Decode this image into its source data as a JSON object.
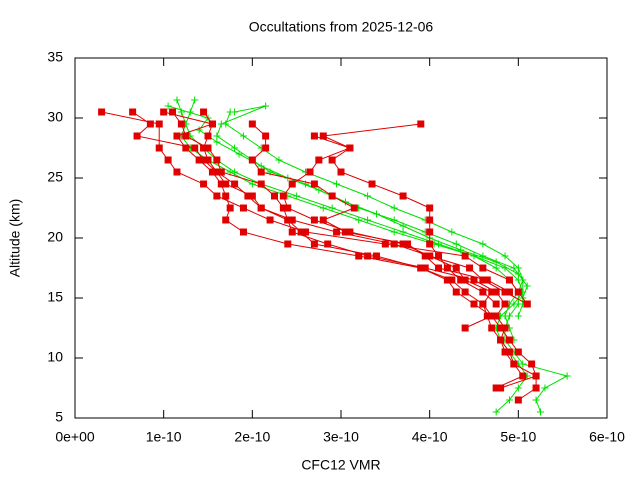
{
  "chart_data": {
    "type": "line",
    "title": "Occultations from 2025-12-06",
    "xlabel": "CFC12 VMR",
    "ylabel": "Altitude (km)",
    "xlim": [
      0,
      6e-10
    ],
    "ylim": [
      5,
      35
    ],
    "xticks": [
      {
        "value": 0,
        "label": "0e+00"
      },
      {
        "value": 1e-10,
        "label": "1e-10"
      },
      {
        "value": 2e-10,
        "label": "2e-10"
      },
      {
        "value": 3e-10,
        "label": "3e-10"
      },
      {
        "value": 4e-10,
        "label": "4e-10"
      },
      {
        "value": 5e-10,
        "label": "5e-10"
      },
      {
        "value": 6e-10,
        "label": "6e-10"
      }
    ],
    "yticks": [
      5,
      10,
      15,
      20,
      25,
      30,
      35
    ],
    "series": [
      {
        "color": "#00e000",
        "marker": "plus",
        "x": [
          1.15e-10,
          1.2e-10,
          1.25e-10,
          1.3e-10,
          1.45e-10,
          1.6e-10,
          1.8e-10,
          2.1e-10,
          2.5e-10,
          2.9e-10,
          3.3e-10,
          3.7e-10,
          4.1e-10,
          4.5e-10,
          4.75e-10,
          4.9e-10,
          5e-10,
          5e-10,
          4.9e-10,
          4.85e-10,
          4.85e-10,
          4.95e-10,
          5.05e-10,
          5.55e-10,
          5.3e-10,
          5.2e-10,
          5.25e-10
        ],
        "y": [
          31.5,
          30.5,
          29.5,
          28.5,
          27.5,
          26.5,
          25.5,
          24.5,
          23.5,
          22.5,
          21.5,
          20.5,
          19.5,
          18.5,
          17.5,
          16.5,
          15.5,
          14.5,
          13.5,
          12.5,
          11.5,
          10.5,
          9.5,
          8.5,
          7.5,
          6.5,
          5.5
        ]
      },
      {
        "color": "#00e000",
        "marker": "plus",
        "x": [
          1.35e-10,
          1.3e-10,
          1.25e-10,
          1.2e-10,
          1.3e-10,
          1.5e-10,
          1.75e-10,
          2e-10,
          2.4e-10,
          2.8e-10,
          3.2e-10,
          3.6e-10,
          4.05e-10,
          4.5e-10,
          4.85e-10,
          5e-10,
          5.05e-10,
          4.95e-10,
          4.8e-10,
          4.75e-10,
          4.8e-10,
          4.9e-10,
          5e-10,
          5.1e-10,
          5e-10,
          4.9e-10,
          4.75e-10
        ],
        "y": [
          31.5,
          30.5,
          29.5,
          28.5,
          27.5,
          26.5,
          25.5,
          24.5,
          23.5,
          22.5,
          21.5,
          20.5,
          19.5,
          18.5,
          17.5,
          16.5,
          15.5,
          14.5,
          13.5,
          12.5,
          11.5,
          10.5,
          9.5,
          8.5,
          7.5,
          6.5,
          5.5
        ]
      },
      {
        "color": "#00e000",
        "marker": "plus",
        "x": [
          1.8e-10,
          2.15e-10,
          1.65e-10,
          1.6e-10,
          1.8e-10,
          2e-10,
          2.2e-10,
          2.6e-10,
          2.9e-10,
          3.2e-10,
          3.6e-10,
          3.95e-10,
          4.3e-10,
          4.6e-10,
          4.95e-10,
          5.05e-10,
          5e-10,
          4.9e-10,
          4.85e-10,
          4.9e-10,
          4.95e-10
        ],
        "y": [
          30.5,
          31.0,
          29.5,
          28.5,
          27.5,
          26.5,
          25.5,
          24.5,
          23.5,
          22.5,
          21.5,
          20.5,
          19.5,
          18.5,
          17.5,
          16.5,
          15.5,
          14.5,
          13.5,
          12.5,
          11.5
        ]
      },
      {
        "color": "#00e000",
        "marker": "plus",
        "x": [
          1.05e-10,
          1.5e-10,
          1.4e-10,
          1.6e-10,
          1.85e-10,
          2.1e-10,
          2.4e-10,
          2.75e-10,
          3.05e-10,
          3.4e-10,
          3.7e-10,
          4e-10,
          4.35e-10,
          4.75e-10,
          5e-10,
          5.1e-10,
          5.05e-10
        ],
        "y": [
          31.0,
          30.0,
          29.0,
          28.0,
          27.0,
          26.0,
          25.0,
          24.0,
          23.0,
          22.0,
          21.0,
          20.0,
          19.0,
          18.0,
          17.0,
          16.0,
          15.0
        ]
      },
      {
        "color": "#00e000",
        "marker": "plus",
        "x": [
          1.75e-10,
          1.7e-10,
          1.9e-10,
          2.1e-10,
          2.3e-10,
          2.6e-10,
          2.95e-10,
          3.3e-10,
          3.6e-10,
          3.95e-10,
          4.25e-10,
          4.6e-10,
          4.85e-10,
          5e-10,
          5.05e-10,
          5.05e-10,
          5.05e-10,
          5e-10
        ],
        "y": [
          30.5,
          29.5,
          28.5,
          27.5,
          26.5,
          25.5,
          24.5,
          23.5,
          22.5,
          21.5,
          20.5,
          19.5,
          18.5,
          17.5,
          16.5,
          15.5,
          14.5,
          13.5
        ]
      },
      {
        "color": "#e00000",
        "marker": "square",
        "x": [
          3e-11,
          9.5e-11,
          9.5e-11,
          1.05e-10,
          1.15e-10,
          1.45e-10,
          1.6e-10,
          1.9e-10,
          2.2e-10,
          2.6e-10,
          3.5e-10,
          4.4e-10,
          4.6e-10,
          4.9e-10,
          5e-10,
          5.1e-10
        ],
        "y": [
          30.5,
          29.5,
          27.5,
          26.5,
          25.5,
          24.5,
          23.5,
          22.5,
          21.5,
          20.5,
          19.5,
          18.5,
          17.5,
          16.5,
          15.5,
          14.5
        ]
      },
      {
        "color": "#e00000",
        "marker": "square",
        "x": [
          6.5e-11,
          8.5e-11,
          7e-11,
          1.35e-10,
          1.45e-10,
          1.6e-10,
          1.8e-10,
          1.95e-10,
          2.1e-10,
          2.45e-10,
          2.95e-10,
          3.6e-10,
          4e-10,
          4.3e-10,
          4.4e-10,
          4.7e-10,
          4.6e-10,
          4.7e-10,
          4.8e-10,
          4.9e-10,
          5e-10,
          5.15e-10,
          5.2e-10,
          5.2e-10,
          5e-10
        ],
        "y": [
          30.5,
          29.5,
          28.5,
          27.5,
          26.5,
          25.5,
          24.5,
          23.5,
          22.5,
          21.5,
          20.5,
          19.5,
          18.5,
          17.5,
          16.5,
          15.5,
          14.5,
          13.5,
          12.5,
          11.5,
          10.5,
          9.5,
          8.5,
          7.5,
          6.5
        ]
      },
      {
        "color": "#e00000",
        "marker": "square",
        "x": [
          1e-10,
          1.55e-10,
          1.15e-10,
          1.25e-10,
          1.4e-10,
          1.55e-10,
          1.65e-10,
          1.7e-10,
          1.75e-10,
          1.7e-10,
          1.9e-10,
          2.4e-10,
          3.2e-10,
          3.9e-10,
          4.2e-10,
          4.3e-10,
          4.5e-10,
          4.7e-10,
          4.4e-10
        ],
        "y": [
          30.5,
          29.5,
          28.5,
          27.5,
          26.5,
          25.5,
          24.5,
          23.5,
          22.5,
          21.5,
          20.5,
          19.5,
          18.5,
          17.5,
          16.5,
          15.5,
          14.5,
          13.5,
          12.5
        ]
      },
      {
        "color": "#e00000",
        "marker": "square",
        "x": [
          1.1e-10,
          1.2e-10,
          1.25e-10,
          1.5e-10,
          1.6e-10,
          1.65e-10,
          2.1e-10,
          2.25e-10,
          2.35e-10,
          2.4e-10,
          2.55e-10,
          2.7e-10,
          3.4e-10,
          3.9e-10,
          4.25e-10,
          4.4e-10,
          4.6e-10,
          4.65e-10,
          4.7e-10,
          4.8e-10,
          4.9e-10,
          4.95e-10,
          5.05e-10,
          4.75e-10
        ],
        "y": [
          30.5,
          29.5,
          28.5,
          27.5,
          26.5,
          25.5,
          24.5,
          23.5,
          22.5,
          21.5,
          20.5,
          19.5,
          18.5,
          17.5,
          16.5,
          15.5,
          14.5,
          13.5,
          12.5,
          11.5,
          10.5,
          9.5,
          8.5,
          7.5
        ]
      },
      {
        "color": "#e00000",
        "marker": "square",
        "x": [
          1.45e-10,
          1.55e-10,
          1.5e-10,
          1.45e-10,
          1.5e-10,
          1.6e-10,
          1.7e-10,
          2e-10,
          2.1e-10,
          2.4e-10,
          2.45e-10,
          2.85e-10,
          3.3e-10,
          3.95e-10,
          4.5e-10,
          4.75e-10,
          4.85e-10,
          4.75e-10,
          4.85e-10,
          4.8e-10,
          4.85e-10,
          4.95e-10,
          5.2e-10,
          4.8e-10
        ],
        "y": [
          30.5,
          29.5,
          28.5,
          27.5,
          26.5,
          25.5,
          24.5,
          23.5,
          22.5,
          21.5,
          20.5,
          19.5,
          18.5,
          17.5,
          16.5,
          15.5,
          14.5,
          13.5,
          12.5,
          11.5,
          10.5,
          9.5,
          8.5,
          7.5
        ]
      },
      {
        "color": "#e00000",
        "marker": "square",
        "x": [
          3.9e-10,
          2.8e-10,
          3.1e-10,
          2.75e-10,
          2.65e-10,
          2.45e-10,
          2.35e-10,
          2.4e-10,
          2.7e-10,
          3.1e-10,
          3.7e-10,
          4e-10,
          4.45e-10,
          4.6e-10,
          4.85e-10,
          5.1e-10
        ],
        "y": [
          29.5,
          28.5,
          27.5,
          26.5,
          25.5,
          24.5,
          23.5,
          22.5,
          21.5,
          20.5,
          19.5,
          18.5,
          17.5,
          16.5,
          15.5,
          14.5
        ]
      },
      {
        "color": "#e00000",
        "marker": "square",
        "x": [
          2e-10,
          2.15e-10,
          2.15e-10,
          2e-10,
          2.1e-10,
          2.7e-10,
          2.9e-10,
          3.15e-10,
          2.8e-10,
          3.05e-10,
          3.75e-10,
          3.95e-10,
          4.1e-10,
          4.65e-10,
          4.9e-10
        ],
        "y": [
          29.5,
          28.5,
          27.5,
          26.5,
          25.5,
          24.5,
          23.5,
          22.5,
          21.5,
          20.5,
          19.5,
          18.5,
          17.5,
          16.5,
          15.5
        ]
      },
      {
        "color": "#e00000",
        "marker": "square",
        "x": [
          2.7e-10,
          3.1e-10,
          2.9e-10,
          3e-10,
          3.35e-10,
          3.7e-10,
          4e-10,
          4e-10,
          4e-10,
          4e-10,
          4.1e-10,
          4.2e-10,
          4.35e-10,
          4.6e-10,
          4.75e-10
        ],
        "y": [
          28.5,
          27.5,
          26.5,
          25.5,
          24.5,
          23.5,
          22.5,
          21.5,
          20.5,
          19.5,
          18.5,
          17.5,
          16.5,
          15.5,
          14.5
        ]
      }
    ]
  }
}
